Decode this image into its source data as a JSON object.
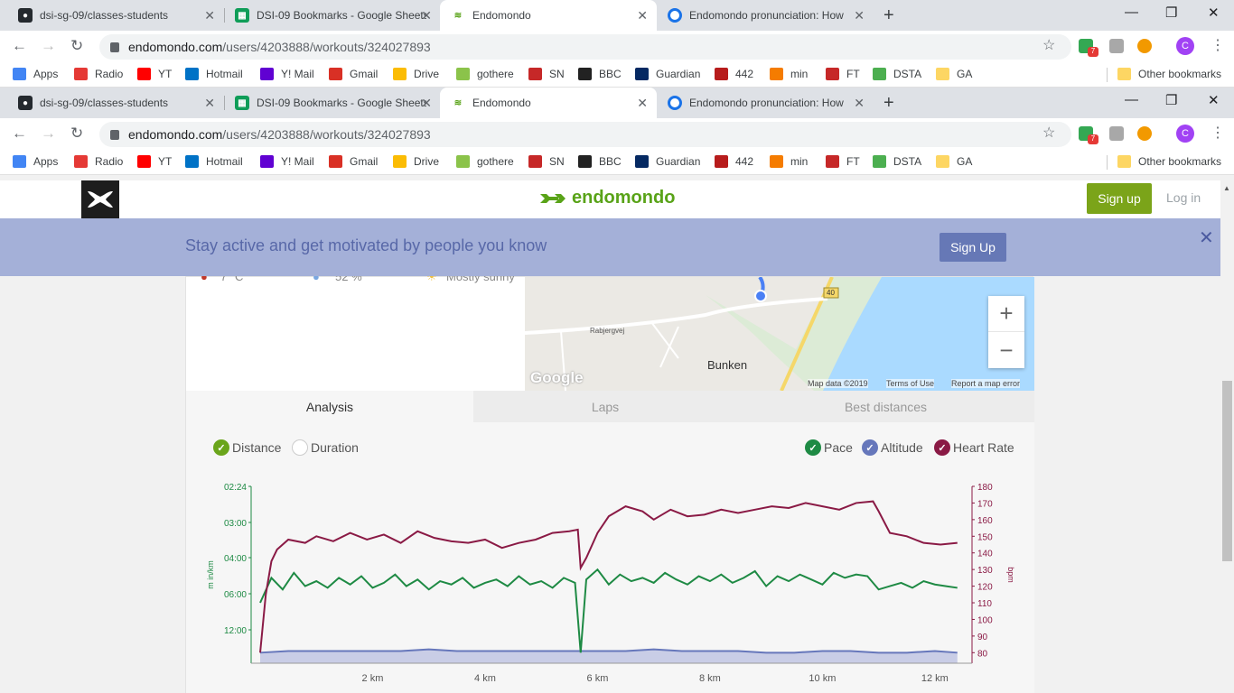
{
  "browser": {
    "tabs": [
      {
        "title": "dsi-sg-09/classes-students",
        "icon": "github-icon",
        "color": "#24292e"
      },
      {
        "title": "DSI-09 Bookmarks - Google Sheets",
        "icon": "sheets-icon",
        "color": "#0f9d58"
      },
      {
        "title": "Endomondo",
        "icon": "endomondo-icon",
        "color": "#59a318"
      },
      {
        "title": "Endomondo pronunciation: How",
        "icon": "howjsay-icon",
        "color": "#1a73e8"
      }
    ],
    "url_host": "endomondo.com",
    "url_path": "/users/4203888/workouts/324027893",
    "badge_count": "7",
    "profile_initial": "C",
    "bookmarks": [
      {
        "label": "Apps",
        "color": "#4285f4"
      },
      {
        "label": "Radio",
        "color": "#e53935"
      },
      {
        "label": "YT",
        "color": "#ff0000"
      },
      {
        "label": "Hotmail",
        "color": "#0072c6"
      },
      {
        "label": "Y! Mail",
        "color": "#6001d2"
      },
      {
        "label": "Gmail",
        "color": "#d93025"
      },
      {
        "label": "Drive",
        "color": "#fbbc04"
      },
      {
        "label": "gothere",
        "color": "#8bc34a"
      },
      {
        "label": "SN",
        "color": "#c62828"
      },
      {
        "label": "BBC",
        "color": "#222222"
      },
      {
        "label": "Guardian",
        "color": "#052962"
      },
      {
        "label": "442",
        "color": "#b71c1c"
      },
      {
        "label": "min",
        "color": "#f57c00"
      },
      {
        "label": "FT",
        "color": "#c62828"
      },
      {
        "label": "DSTA",
        "color": "#4caf50"
      },
      {
        "label": "GA",
        "color": "#fdd663"
      }
    ],
    "other_bookmarks": "Other bookmarks"
  },
  "site": {
    "brand": "endomondo",
    "signup_label": "Sign up",
    "login_label": "Log in",
    "banner_text": "Stay active and get motivated by people you know",
    "banner_button": "Sign Up"
  },
  "weather": {
    "temp": "7 °C",
    "humidity": "52 %",
    "condition": "Mostly sunny"
  },
  "map": {
    "place_label": "Bunken",
    "road_label": "Rabjergvej",
    "route_number": "40",
    "google": "Google",
    "map_data": "Map data ©2019",
    "terms": "Terms of Use",
    "report": "Report a map error",
    "zoom_in": "+",
    "zoom_out": "−"
  },
  "tabs": [
    "Analysis",
    "Laps",
    "Best distances"
  ],
  "toggles": {
    "left": [
      {
        "label": "Distance",
        "checked": true,
        "color": "#6aa51b"
      },
      {
        "label": "Duration",
        "checked": false,
        "color": "#cccccc"
      }
    ],
    "right": [
      {
        "label": "Pace",
        "checked": true,
        "color": "#1e8a44"
      },
      {
        "label": "Altitude",
        "checked": true,
        "color": "#6677bb"
      },
      {
        "label": "Heart Rate",
        "checked": true,
        "color": "#8a1a45"
      }
    ]
  },
  "chart_data": {
    "type": "line",
    "x_unit": "km",
    "x_ticks": [
      "2 km",
      "4 km",
      "6 km",
      "8 km",
      "10 km",
      "12 km"
    ],
    "x_tick_values": [
      2,
      4,
      6,
      8,
      10,
      12
    ],
    "xlim": [
      0,
      12.5
    ],
    "left_axis": {
      "label": "m in/km",
      "ticks": [
        "02:24",
        "03:00",
        "04:00",
        "06:00",
        "12:00"
      ],
      "color": "#1e8a44"
    },
    "right_axis": {
      "label": "bpm",
      "ticks": [
        "180",
        "170",
        "160",
        "150",
        "140",
        "130",
        "120",
        "110",
        "100",
        "90",
        "80"
      ],
      "ylim": [
        78,
        180
      ],
      "color": "#8a1a45"
    },
    "series": [
      {
        "name": "Heart Rate",
        "color": "#8a1a45",
        "axis": "right",
        "x": [
          0.0,
          0.1,
          0.2,
          0.3,
          0.5,
          0.8,
          1.0,
          1.3,
          1.6,
          1.9,
          2.2,
          2.5,
          2.8,
          3.1,
          3.4,
          3.7,
          4.0,
          4.3,
          4.6,
          4.9,
          5.2,
          5.5,
          5.65,
          5.7,
          5.8,
          6.0,
          6.2,
          6.5,
          6.8,
          7.0,
          7.3,
          7.6,
          7.9,
          8.2,
          8.5,
          8.8,
          9.1,
          9.4,
          9.7,
          10.0,
          10.3,
          10.6,
          10.9,
          11.0,
          11.2,
          11.5,
          11.8,
          12.1,
          12.4
        ],
        "y": [
          80,
          115,
          135,
          142,
          148,
          146,
          150,
          147,
          152,
          148,
          151,
          146,
          153,
          149,
          147,
          146,
          148,
          143,
          146,
          148,
          152,
          153,
          154,
          131,
          137,
          152,
          162,
          168,
          165,
          160,
          166,
          162,
          163,
          166,
          164,
          166,
          168,
          167,
          170,
          168,
          166,
          170,
          171,
          165,
          152,
          150,
          146,
          145,
          146
        ]
      },
      {
        "name": "Pace",
        "color": "#1e8a44",
        "axis": "left",
        "x": [
          0.0,
          0.2,
          0.4,
          0.6,
          0.8,
          1.0,
          1.2,
          1.4,
          1.6,
          1.8,
          2.0,
          2.2,
          2.4,
          2.6,
          2.8,
          3.0,
          3.2,
          3.4,
          3.6,
          3.8,
          4.0,
          4.2,
          4.4,
          4.6,
          4.8,
          5.0,
          5.2,
          5.4,
          5.6,
          5.7,
          5.8,
          6.0,
          6.2,
          6.4,
          6.6,
          6.8,
          7.0,
          7.2,
          7.4,
          7.6,
          7.8,
          8.0,
          8.2,
          8.4,
          8.6,
          8.8,
          9.0,
          9.2,
          9.4,
          9.6,
          9.8,
          10.0,
          10.2,
          10.4,
          10.6,
          10.8,
          11.0,
          11.2,
          11.4,
          11.6,
          11.8,
          12.0,
          12.2,
          12.4
        ],
        "y": [
          110,
          125,
          118,
          128,
          120,
          123,
          119,
          125,
          121,
          126,
          119,
          122,
          127,
          120,
          124,
          118,
          123,
          121,
          125,
          119,
          122,
          124,
          120,
          126,
          121,
          123,
          119,
          125,
          122,
          80,
          124,
          130,
          121,
          127,
          123,
          125,
          122,
          128,
          124,
          121,
          126,
          123,
          127,
          122,
          125,
          129,
          120,
          126,
          123,
          127,
          124,
          121,
          128,
          125,
          127,
          126,
          118,
          120,
          122,
          119,
          123,
          121,
          120,
          119
        ]
      },
      {
        "name": "Altitude",
        "color": "#6677bb",
        "axis": "right",
        "x": [
          0.0,
          0.5,
          1.0,
          1.5,
          2.0,
          2.5,
          3.0,
          3.5,
          4.0,
          4.5,
          5.0,
          5.5,
          6.0,
          6.5,
          7.0,
          7.5,
          8.0,
          8.5,
          9.0,
          9.5,
          10.0,
          10.5,
          11.0,
          11.5,
          12.0,
          12.4
        ],
        "y": [
          80,
          81,
          81,
          81,
          81,
          81,
          82,
          81,
          81,
          81,
          81,
          81,
          81,
          81,
          82,
          81,
          81,
          81,
          80,
          80,
          81,
          81,
          80,
          80,
          81,
          80
        ]
      }
    ]
  }
}
